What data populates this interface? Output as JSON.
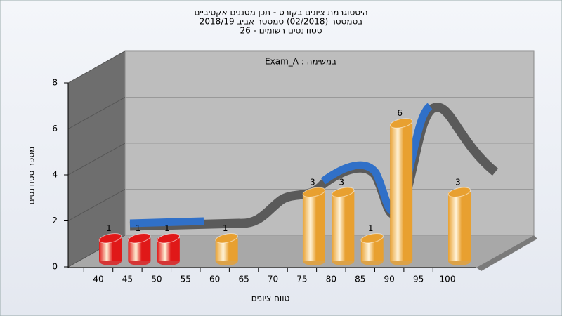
{
  "chart_data": {
    "type": "bar3d",
    "title": [
      "היסטוגרמת ציונים בקורס - תכן מסננים אקטיביים",
      "בסמסטר (02/2018) סמסטר אביב 2018/19",
      "סטודנטים רשומים - 26"
    ],
    "annotation": "במשימה : Exam_A",
    "y_label": "מספר סטודנטים",
    "x_label": "טווח ציונים",
    "categories": [
      "40",
      "45",
      "50",
      "55",
      "60",
      "65",
      "70",
      "75",
      "80",
      "85",
      "90",
      "95",
      "100"
    ],
    "values": [
      1,
      1,
      1,
      0,
      1,
      0,
      0,
      3,
      3,
      1,
      6,
      0,
      3
    ],
    "colors": [
      "#e01818",
      "#e01818",
      "#e01818",
      "#e8a030",
      "#e8a030",
      "#e8a030",
      "#e8a030",
      "#e8a030",
      "#e8a030",
      "#e8a030",
      "#e8a030",
      "#e8a030",
      "#e8a030"
    ],
    "ylim": [
      0,
      8
    ],
    "yticks": [
      0,
      2,
      4,
      6,
      8
    ],
    "grid": true
  }
}
